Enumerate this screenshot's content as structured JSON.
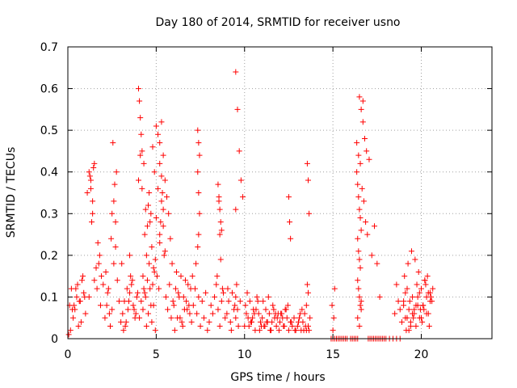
{
  "chart_data": {
    "type": "scatter",
    "title": "Day 180 of 2014, SRMTID for receiver usno",
    "xlabel": "GPS time / hours",
    "ylabel": "SRMTID / TECUs",
    "xlim": [
      0,
      24
    ],
    "ylim": [
      0,
      0.7
    ],
    "xticks": [
      0,
      5,
      10,
      15,
      20
    ],
    "xtick_labels": [
      "0",
      "5",
      "10",
      "15",
      "20"
    ],
    "yticks": [
      0,
      0.1,
      0.2,
      0.3,
      0.4,
      0.5,
      0.6,
      0.7
    ],
    "ytick_labels": [
      "0",
      "0.1",
      "0.2",
      "0.3",
      "0.4",
      "0.5",
      "0.6",
      "0.7"
    ],
    "grid": true,
    "marker": "+",
    "series": [
      {
        "name": "SRMTID",
        "color": "#ff0000",
        "x": [
          0.1,
          0.2,
          0.3,
          0.4,
          0.5,
          0.6,
          0.7,
          0.8,
          0.9,
          1.0,
          0.15,
          0.35,
          0.55,
          0.75,
          0.95,
          0.25,
          0.45,
          0.65,
          0.85,
          0.05,
          1.1,
          1.2,
          1.3,
          1.4,
          1.5,
          1.25,
          1.35,
          1.45,
          1.3,
          1.4,
          1.2,
          1.5,
          1.6,
          1.7,
          1.8,
          1.9,
          2.0,
          1.65,
          1.75,
          1.85,
          2.1,
          2.2,
          2.3,
          2.4,
          2.5,
          2.6,
          2.7,
          2.8,
          2.9,
          3.0,
          2.55,
          2.65,
          2.6,
          2.7,
          2.75,
          2.5,
          2.45,
          2.35,
          2.25,
          2.15,
          3.1,
          3.2,
          3.3,
          3.4,
          3.5,
          3.6,
          3.7,
          3.8,
          3.9,
          3.15,
          3.35,
          3.55,
          3.75,
          3.25,
          3.45,
          3.65,
          3.85,
          3.05,
          3.95,
          3.5,
          4.0,
          4.05,
          4.1,
          4.15,
          4.2,
          4.0,
          4.1,
          4.2,
          4.3,
          4.4,
          4.5,
          4.6,
          4.7,
          4.8,
          4.9,
          4.35,
          4.45,
          4.55,
          4.65,
          4.75,
          4.85,
          4.95,
          4.25,
          4.3,
          4.4,
          4.5,
          4.6,
          4.7,
          4.8,
          4.9,
          4.05,
          4.15,
          4.25,
          4.35,
          4.45,
          4.55,
          4.65,
          4.75,
          4.85,
          4.95,
          5.0,
          5.1,
          5.2,
          5.3,
          5.4,
          5.5,
          5.6,
          5.7,
          5.8,
          5.9,
          5.05,
          5.15,
          5.25,
          5.35,
          5.45,
          5.55,
          5.65,
          5.75,
          5.85,
          5.95,
          5.2,
          5.3,
          5.4,
          5.1,
          5.2,
          5.5,
          5.3,
          5.4,
          5.2,
          5.0,
          6.0,
          6.1,
          6.2,
          6.3,
          6.4,
          6.5,
          6.6,
          6.7,
          6.8,
          6.9,
          6.05,
          6.25,
          6.45,
          6.65,
          6.85,
          6.15,
          6.35,
          6.55,
          6.75,
          6.95,
          7.0,
          7.1,
          7.2,
          7.3,
          7.4,
          7.5,
          7.6,
          7.7,
          7.8,
          7.9,
          7.35,
          7.4,
          7.45,
          7.35,
          7.4,
          7.45,
          7.4,
          7.35,
          7.05,
          7.25,
          8.0,
          8.1,
          8.2,
          8.3,
          8.4,
          8.5,
          8.6,
          8.7,
          8.8,
          8.9,
          8.5,
          8.55,
          8.6,
          8.65,
          8.7,
          8.55,
          8.6,
          8.65,
          8.45,
          8.75,
          9.0,
          9.1,
          9.2,
          9.3,
          9.4,
          9.5,
          9.6,
          9.7,
          9.8,
          9.9,
          9.5,
          9.55,
          9.5,
          9.45,
          9.5,
          9.6,
          9.65,
          9.05,
          9.25,
          9.75,
          10.0,
          10.1,
          10.2,
          10.3,
          10.4,
          10.5,
          10.6,
          10.7,
          10.8,
          10.9,
          10.05,
          10.25,
          10.45,
          10.65,
          10.85,
          10.15,
          10.35,
          10.55,
          10.75,
          10.95,
          11.0,
          11.1,
          11.2,
          11.3,
          11.4,
          11.5,
          11.6,
          11.7,
          11.8,
          11.9,
          11.05,
          11.25,
          11.45,
          11.65,
          11.85,
          11.15,
          11.35,
          11.55,
          11.75,
          11.95,
          12.0,
          12.1,
          12.2,
          12.3,
          12.4,
          12.5,
          12.6,
          12.7,
          12.8,
          12.9,
          12.5,
          12.55,
          12.6,
          12.05,
          12.25,
          12.45,
          12.65,
          12.85,
          12.15,
          12.35,
          13.0,
          13.1,
          13.2,
          13.3,
          13.4,
          13.5,
          13.6,
          13.7,
          13.55,
          13.6,
          13.65,
          13.6,
          13.05,
          13.25,
          13.45,
          13.15,
          13.35,
          13.5,
          13.55,
          13.65,
          14.9,
          15.0,
          15.1,
          15.2,
          15.3,
          15.4,
          15.0,
          15.05,
          14.95,
          15.1,
          15.5,
          15.6,
          15.7,
          15.8,
          16.0,
          16.1,
          16.2,
          16.3,
          16.4,
          16.5,
          16.6,
          16.7,
          16.8,
          16.9,
          16.35,
          16.4,
          16.45,
          16.5,
          16.55,
          16.6,
          16.4,
          16.45,
          16.5,
          16.55,
          16.4,
          16.45,
          16.5,
          16.55,
          16.6,
          16.35,
          16.45,
          16.55,
          16.65,
          16.75,
          16.85,
          16.95,
          16.4,
          16.5,
          16.6,
          16.7,
          17.0,
          17.1,
          17.2,
          17.3,
          17.4,
          17.5,
          17.6,
          17.7,
          17.8,
          17.9,
          17.05,
          17.2,
          17.35,
          17.5,
          17.65,
          18.0,
          18.2,
          18.4,
          18.6,
          18.8,
          19.0,
          19.2,
          19.4,
          19.6,
          19.8,
          18.5,
          18.7,
          18.9,
          19.1,
          19.3,
          19.5,
          19.7,
          19.9,
          18.6,
          18.8,
          19.0,
          19.1,
          19.2,
          19.3,
          19.4,
          19.5,
          19.6,
          19.7,
          19.8,
          19.9,
          19.15,
          19.35,
          19.55,
          19.75,
          19.95,
          19.05,
          19.25,
          19.45,
          19.65,
          19.85,
          20.0,
          20.1,
          20.2,
          20.3,
          20.4,
          20.5,
          20.6,
          20.05,
          20.15,
          20.25,
          20.35,
          20.45,
          20.55,
          20.65,
          20.0,
          20.1,
          20.2,
          20.3,
          20.4,
          20.5
        ],
        "y": [
          0.08,
          0.12,
          0.05,
          0.07,
          0.1,
          0.03,
          0.09,
          0.14,
          0.11,
          0.06,
          0.02,
          0.08,
          0.13,
          0.04,
          0.1,
          0.07,
          0.12,
          0.09,
          0.15,
          0.01,
          0.35,
          0.4,
          0.38,
          0.3,
          0.42,
          0.39,
          0.28,
          0.41,
          0.36,
          0.33,
          0.1,
          0.14,
          0.17,
          0.23,
          0.2,
          0.15,
          0.13,
          0.12,
          0.18,
          0.08,
          0.05,
          0.08,
          0.12,
          0.03,
          0.07,
          0.18,
          0.22,
          0.14,
          0.09,
          0.04,
          0.47,
          0.37,
          0.33,
          0.28,
          0.4,
          0.3,
          0.24,
          0.06,
          0.11,
          0.16,
          0.06,
          0.09,
          0.04,
          0.07,
          0.11,
          0.13,
          0.08,
          0.05,
          0.1,
          0.02,
          0.12,
          0.15,
          0.07,
          0.03,
          0.09,
          0.14,
          0.06,
          0.18,
          0.11,
          0.2,
          0.6,
          0.57,
          0.53,
          0.49,
          0.45,
          0.38,
          0.44,
          0.36,
          0.42,
          0.31,
          0.27,
          0.35,
          0.3,
          0.46,
          0.4,
          0.25,
          0.2,
          0.32,
          0.28,
          0.22,
          0.17,
          0.19,
          0.15,
          0.12,
          0.1,
          0.14,
          0.18,
          0.08,
          0.13,
          0.16,
          0.05,
          0.09,
          0.07,
          0.11,
          0.03,
          0.06,
          0.12,
          0.04,
          0.08,
          0.02,
          0.51,
          0.49,
          0.47,
          0.52,
          0.44,
          0.38,
          0.34,
          0.3,
          0.24,
          0.18,
          0.15,
          0.12,
          0.28,
          0.35,
          0.2,
          0.1,
          0.07,
          0.13,
          0.05,
          0.09,
          0.42,
          0.39,
          0.31,
          0.36,
          0.25,
          0.21,
          0.33,
          0.27,
          0.23,
          0.29,
          0.08,
          0.12,
          0.05,
          0.1,
          0.15,
          0.03,
          0.07,
          0.09,
          0.13,
          0.06,
          0.02,
          0.11,
          0.04,
          0.14,
          0.08,
          0.16,
          0.05,
          0.1,
          0.07,
          0.12,
          0.04,
          0.08,
          0.12,
          0.06,
          0.1,
          0.03,
          0.09,
          0.05,
          0.11,
          0.02,
          0.5,
          0.47,
          0.44,
          0.4,
          0.35,
          0.3,
          0.25,
          0.22,
          0.15,
          0.18,
          0.04,
          0.08,
          0.06,
          0.1,
          0.13,
          0.07,
          0.03,
          0.09,
          0.11,
          0.05,
          0.37,
          0.34,
          0.31,
          0.28,
          0.26,
          0.33,
          0.25,
          0.19,
          0.15,
          0.12,
          0.06,
          0.09,
          0.04,
          0.11,
          0.07,
          0.64,
          0.55,
          0.45,
          0.38,
          0.34,
          0.31,
          0.13,
          0.1,
          0.08,
          0.05,
          0.07,
          0.03,
          0.12,
          0.02,
          0.09,
          0.03,
          0.06,
          0.05,
          0.09,
          0.04,
          0.07,
          0.02,
          0.1,
          0.06,
          0.04,
          0.08,
          0.03,
          0.05,
          0.07,
          0.02,
          0.11,
          0.04,
          0.06,
          0.09,
          0.03,
          0.05,
          0.03,
          0.07,
          0.04,
          0.06,
          0.02,
          0.08,
          0.05,
          0.03,
          0.06,
          0.09,
          0.04,
          0.02,
          0.07,
          0.05,
          0.03,
          0.1,
          0.04,
          0.06,
          0.02,
          0.04,
          0.06,
          0.03,
          0.07,
          0.05,
          0.02,
          0.04,
          0.03,
          0.05,
          0.02,
          0.34,
          0.28,
          0.24,
          0.06,
          0.03,
          0.08,
          0.04,
          0.02,
          0.05,
          0.07,
          0.03,
          0.05,
          0.02,
          0.04,
          0.06,
          0.02,
          0.03,
          0.05,
          0.42,
          0.38,
          0.3,
          0.11,
          0.04,
          0.07,
          0.03,
          0.06,
          0.02,
          0.08,
          0.13,
          0.02,
          0.0,
          0.0,
          0.0,
          0.0,
          0.0,
          0.0,
          0.02,
          0.05,
          0.08,
          0.12,
          0.0,
          0.0,
          0.0,
          0.0,
          0.0,
          0.0,
          0.0,
          0.0,
          0.0,
          0.58,
          0.55,
          0.52,
          0.48,
          0.45,
          0.4,
          0.37,
          0.34,
          0.31,
          0.29,
          0.26,
          0.24,
          0.21,
          0.19,
          0.17,
          0.14,
          0.12,
          0.1,
          0.08,
          0.07,
          0.47,
          0.44,
          0.42,
          0.36,
          0.33,
          0.28,
          0.25,
          0.05,
          0.03,
          0.09,
          0.57,
          0.0,
          0.0,
          0.0,
          0.0,
          0.0,
          0.0,
          0.0,
          0.0,
          0.0,
          0.0,
          0.43,
          0.2,
          0.27,
          0.18,
          0.1,
          0.0,
          0.0,
          0.0,
          0.0,
          0.0,
          0.08,
          0.05,
          0.03,
          0.07,
          0.1,
          0.06,
          0.09,
          0.04,
          0.11,
          0.02,
          0.06,
          0.08,
          0.05,
          0.13,
          0.07,
          0.09,
          0.05,
          0.12,
          0.07,
          0.04,
          0.1,
          0.06,
          0.03,
          0.08,
          0.11,
          0.02,
          0.09,
          0.05,
          0.13,
          0.07,
          0.15,
          0.18,
          0.21,
          0.19,
          0.16,
          0.12,
          0.08,
          0.14,
          0.1,
          0.06,
          0.11,
          0.09,
          0.04,
          0.07,
          0.13,
          0.15,
          0.03,
          0.1,
          0.12,
          0.05,
          0.08,
          0.14,
          0.06,
          0.11,
          0.09
        ]
      }
    ]
  }
}
